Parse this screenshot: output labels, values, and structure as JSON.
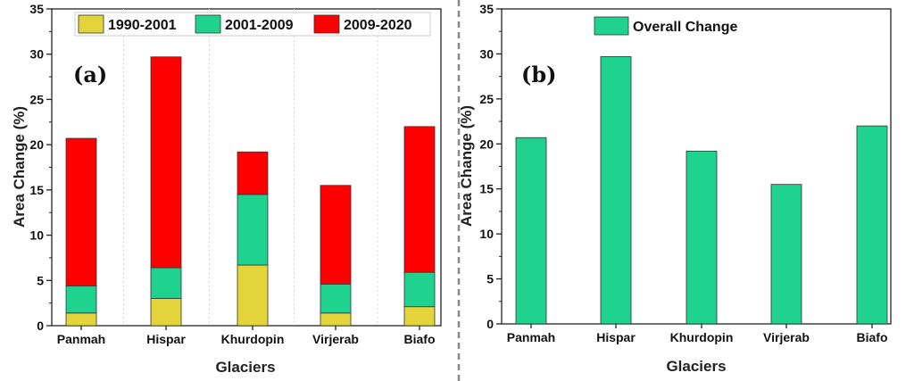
{
  "chart_data": [
    {
      "type": "bar",
      "stacked": true,
      "panel_label": "(a)",
      "categories": [
        "Panmah",
        "Hispar",
        "Khurdopin",
        "Virjerab",
        "Biafo"
      ],
      "series": [
        {
          "name": "1990-2001",
          "color": "#e3d43b",
          "values": [
            1.4,
            3.0,
            6.7,
            1.4,
            2.1
          ]
        },
        {
          "name": "2001-2009",
          "color": "#1fd28e",
          "values": [
            3.0,
            3.4,
            7.8,
            3.2,
            3.8
          ]
        },
        {
          "name": "2009-2020",
          "color": "#ff0000",
          "values": [
            16.3,
            23.3,
            4.7,
            10.9,
            16.1
          ]
        }
      ],
      "xlabel": "Glaciers",
      "ylabel": "Area Change (%)",
      "ylim": [
        0,
        35
      ],
      "yticks": [
        "0",
        "5",
        "10",
        "15",
        "20",
        "25",
        "30",
        "35"
      ],
      "legend": "top"
    },
    {
      "type": "bar",
      "panel_label": "(b)",
      "categories": [
        "Panmah",
        "Hispar",
        "Khurdopin",
        "Virjerab",
        "Biafo"
      ],
      "series": [
        {
          "name": "Overall Change",
          "color": "#1fd28e",
          "values": [
            20.7,
            29.7,
            19.2,
            15.5,
            22.0
          ]
        }
      ],
      "xlabel": "Glaciers",
      "ylabel": "Area Change (%)",
      "ylim": [
        0,
        35
      ],
      "yticks": [
        "0",
        "5",
        "10",
        "15",
        "20",
        "25",
        "30",
        "35"
      ],
      "legend": "top-left"
    }
  ]
}
